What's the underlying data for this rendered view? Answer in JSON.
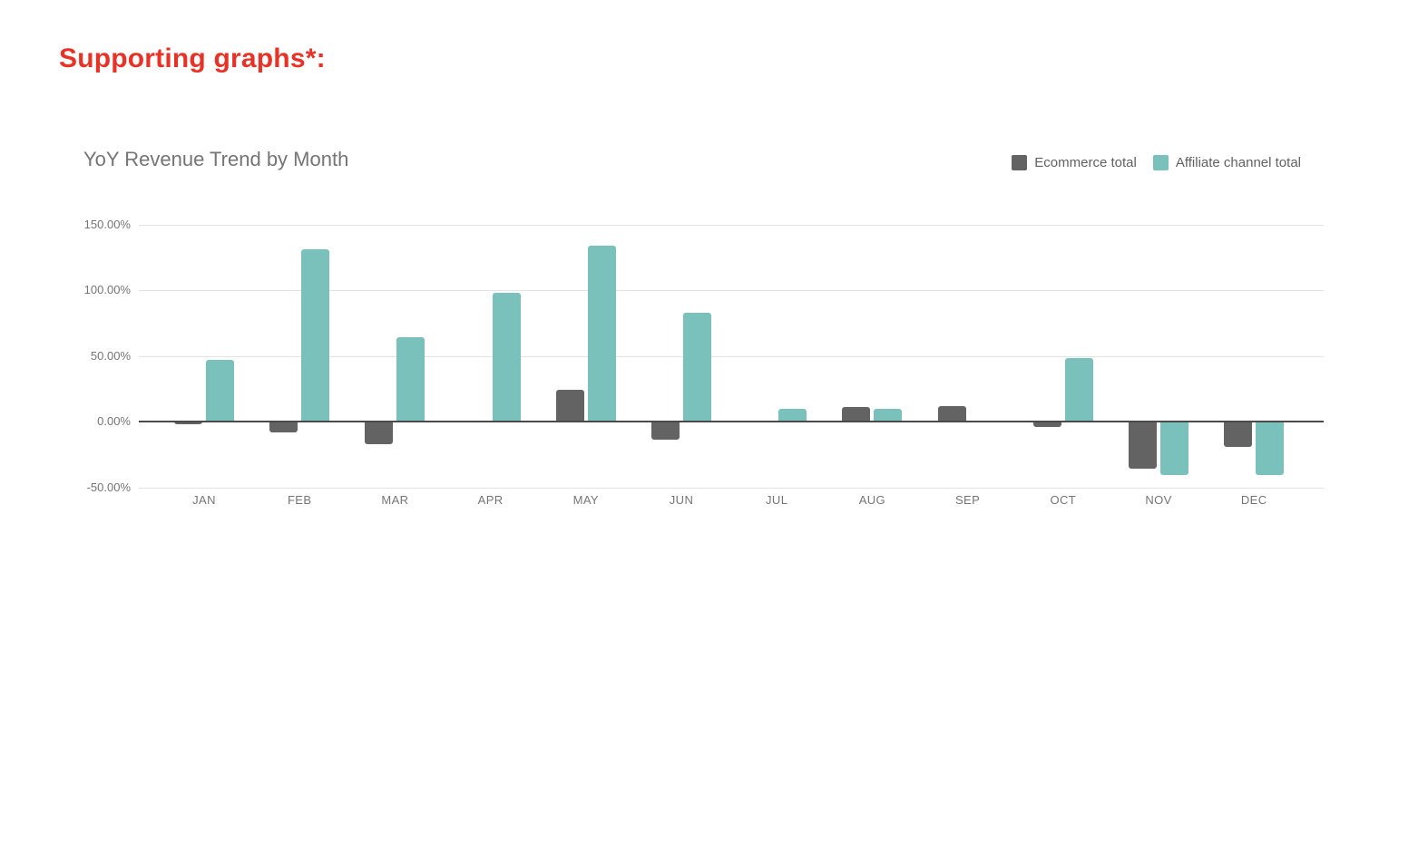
{
  "heading": "Supporting graphs*:",
  "heading_color": "#E73327",
  "chart": {
    "title": "YoY Revenue Trend by Month",
    "legend": [
      {
        "label": "Ecommerce total",
        "color": "#636363"
      },
      {
        "label": "Affiliate channel total",
        "color": "#79C1BA"
      }
    ]
  },
  "chart_data": {
    "type": "bar",
    "title": "YoY Revenue Trend by Month",
    "categories": [
      "JAN",
      "FEB",
      "MAR",
      "APR",
      "MAY",
      "JUN",
      "JUL",
      "AUG",
      "SEP",
      "OCT",
      "NOV",
      "DEC"
    ],
    "series": [
      {
        "name": "Ecommerce total",
        "color": "#636363",
        "values": [
          -2,
          -8,
          -17,
          0,
          24,
          -14,
          1,
          11,
          12,
          -4,
          -36,
          -19
        ]
      },
      {
        "name": "Affiliate channel total",
        "color": "#79C1BA",
        "values": [
          47,
          131,
          64,
          98,
          134,
          83,
          10,
          10,
          1,
          48,
          -41,
          -41
        ]
      }
    ],
    "xlabel": "",
    "ylabel": "",
    "ylim": [
      -50,
      150
    ],
    "ytick_values": [
      150,
      100,
      50,
      0,
      -50
    ],
    "ytick_labels": [
      "150.00%",
      "100.00%",
      "50.00%",
      "0.00%",
      "-50.00%"
    ],
    "value_format": "percent",
    "grid": true,
    "legend_position": "top-right"
  }
}
